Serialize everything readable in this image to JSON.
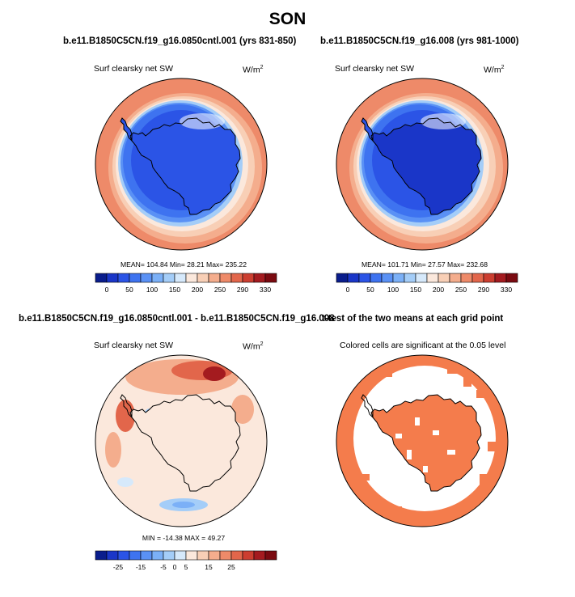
{
  "season_title": "SON",
  "panels": [
    {
      "id": "p1",
      "case_title": "b.e11.B1850C5CN.f19_g16.0850cntl.001 (yrs 831-850)",
      "variable": "Surf clearsky net SW",
      "units_base": "W/m",
      "units_exp": "2",
      "stats": "MEAN= 104.84  Min=  28.21  Max= 235.22"
    },
    {
      "id": "p2",
      "case_title": "b.e11.B1850C5CN.f19_g16.008 (yrs 981-1000)",
      "variable": "Surf clearsky net SW",
      "units_base": "W/m",
      "units_exp": "2",
      "stats": "MEAN= 101.71  Min=  27.57  Max= 232.68"
    },
    {
      "id": "p3",
      "case_title": "b.e11.B1850C5CN.f19_g16.0850cntl.001 - b.e11.B1850C5CN.f19_g16.008",
      "variable": "Surf clearsky net SW",
      "units_base": "W/m",
      "units_exp": "2",
      "stats": "MIN = -14.38  MAX =  49.27"
    },
    {
      "id": "p4",
      "case_title": "t-test of the two means at each grid point",
      "variable": "Colored cells are significant at the 0.05 level"
    }
  ],
  "chart_data": [
    {
      "type": "heatmap",
      "projection": "polar-stereographic-south",
      "title": "b.e11.B1850C5CN.f19_g16.0850cntl.001 (yrs 831-850)",
      "variable": "Surf clearsky net SW",
      "units": "W/m2",
      "mean": 104.84,
      "min": 28.21,
      "max": 235.22,
      "colorbar": {
        "levels": [
          0,
          25,
          50,
          75,
          100,
          125,
          150,
          175,
          200,
          225,
          250,
          270,
          290,
          310,
          330
        ],
        "tick_labels": [
          "0",
          "50",
          "100",
          "150",
          "200",
          "250",
          "290",
          "330"
        ],
        "colors": [
          "#0a1d8c",
          "#1a36c8",
          "#2b54e6",
          "#3e73f0",
          "#5a91f5",
          "#7bb0f7",
          "#a4cdf8",
          "#d6e9fb",
          "#fbe8dc",
          "#f8cfb6",
          "#f4ad8d",
          "#ee8a69",
          "#e2664b",
          "#cc3e30",
          "#a41b1f",
          "#7a0a10"
        ]
      }
    },
    {
      "type": "heatmap",
      "projection": "polar-stereographic-south",
      "title": "b.e11.B1850C5CN.f19_g16.008 (yrs 981-1000)",
      "variable": "Surf clearsky net SW",
      "units": "W/m2",
      "mean": 101.71,
      "min": 27.57,
      "max": 232.68,
      "colorbar": {
        "levels": [
          0,
          25,
          50,
          75,
          100,
          125,
          150,
          175,
          200,
          225,
          250,
          270,
          290,
          310,
          330
        ],
        "tick_labels": [
          "0",
          "50",
          "100",
          "150",
          "200",
          "250",
          "290",
          "330"
        ],
        "colors": [
          "#0a1d8c",
          "#1a36c8",
          "#2b54e6",
          "#3e73f0",
          "#5a91f5",
          "#7bb0f7",
          "#a4cdf8",
          "#d6e9fb",
          "#fbe8dc",
          "#f8cfb6",
          "#f4ad8d",
          "#ee8a69",
          "#e2664b",
          "#cc3e30",
          "#a41b1f",
          "#7a0a10"
        ]
      }
    },
    {
      "type": "heatmap",
      "projection": "polar-stereographic-south",
      "title": "b.e11.B1850C5CN.f19_g16.0850cntl.001 - b.e11.B1850C5CN.f19_g16.008",
      "variable": "Surf clearsky net SW",
      "units": "W/m2",
      "min": -14.38,
      "max": 49.27,
      "colorbar": {
        "levels": [
          -30,
          -25,
          -20,
          -15,
          -10,
          -5,
          0,
          5,
          10,
          15,
          20,
          25,
          30,
          35,
          40
        ],
        "tick_labels": [
          "-25",
          "-15",
          "-5",
          "0",
          "5",
          "15",
          "25"
        ],
        "tick_levels": [
          -25,
          -15,
          -5,
          0,
          5,
          15,
          25
        ],
        "colors": [
          "#0a1d8c",
          "#1a36c8",
          "#2b54e6",
          "#3e73f0",
          "#5a91f5",
          "#7bb0f7",
          "#a4cdf8",
          "#d6e9fb",
          "#fbe8dc",
          "#f8cfb6",
          "#f4ad8d",
          "#ee8a69",
          "#e2664b",
          "#cc3e30",
          "#a41b1f",
          "#7a0a10"
        ]
      }
    },
    {
      "type": "heatmap",
      "projection": "polar-stereographic-south",
      "title": "t-test of the two means at each grid point",
      "subtitle": "Colored cells are significant at the 0.05 level",
      "significance_level": 0.05,
      "significant_color": "#f47c4c"
    }
  ]
}
